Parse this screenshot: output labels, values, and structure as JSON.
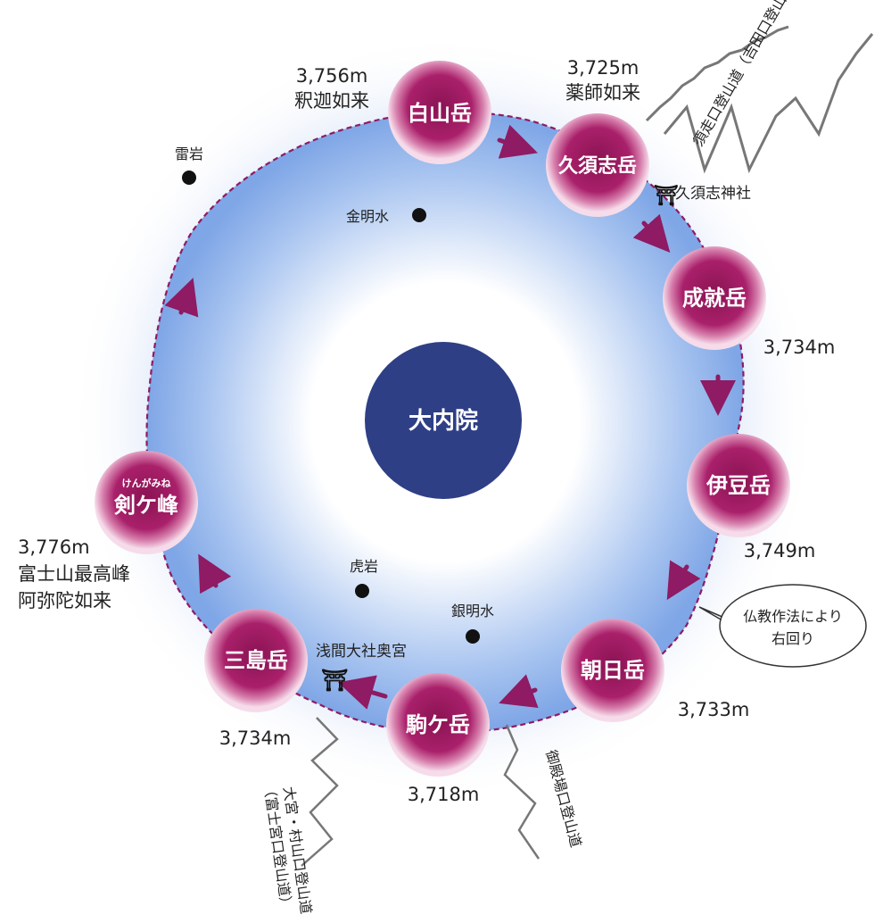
{
  "colors": {
    "peak": "#a3185f",
    "peak_glow": "#e6a3c4",
    "crater": "#2e3f86",
    "route": "#8e1b63",
    "arrow": "#8e1b63",
    "disc_center": "#ffffff",
    "disc_edge": "#6f9ae0",
    "trail": "#777777"
  },
  "center": {
    "label": "大内院"
  },
  "peaks": [
    {
      "id": "hakusan",
      "name": "白山岳",
      "elevation": "3,756m",
      "note": "釈迦如来"
    },
    {
      "id": "kusushi",
      "name": "久須志岳",
      "elevation": "3,725m",
      "note": "薬師如来"
    },
    {
      "id": "jojuu",
      "name": "成就岳",
      "elevation": "3,734m"
    },
    {
      "id": "izu",
      "name": "伊豆岳",
      "elevation": "3,749m"
    },
    {
      "id": "asahi",
      "name": "朝日岳",
      "elevation": "3,733m"
    },
    {
      "id": "komagatake",
      "name": "駒ケ岳",
      "elevation": "3,718m"
    },
    {
      "id": "mishima",
      "name": "三島岳",
      "elevation": "3,734m"
    },
    {
      "id": "kengamine",
      "name": "剣ケ峰",
      "furigana": "けんがみね",
      "elevation": "3,776m",
      "note1": "富士山最高峰",
      "note2": "阿弥陀如来"
    }
  ],
  "points": {
    "kaminariiwa": "雷岩",
    "kinmeisui": "金明水",
    "toraiwa": "虎岩",
    "ginmeisui": "銀明水"
  },
  "shrines": {
    "kusushi_shrine": "久須志神社",
    "sengen_okumiya": "浅間大社奥宮"
  },
  "trails": {
    "subashiri_yoshida": "須走口登山道（吉田口登山道）",
    "gotemba": "御殿場口登山道",
    "fujinomiya_line1": "大宮・村山口登山道",
    "fujinomiya_line2": "（富士宮口登山道）"
  },
  "callout": {
    "line1": "仏教作法により",
    "line2": "右回り"
  }
}
